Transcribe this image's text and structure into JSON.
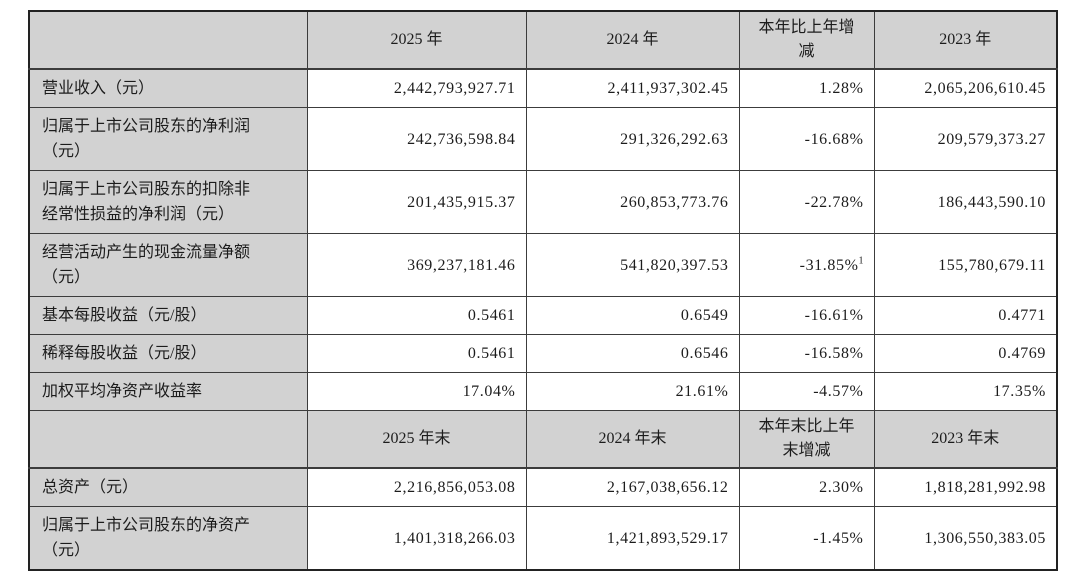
{
  "colors": {
    "header_bg": "#d2d2d2",
    "label_bg": "#d2d2d2",
    "cell_bg": "#ffffff",
    "border": "#3c3c3c",
    "text": "#1c1c1c"
  },
  "table": {
    "column_names": [
      "indicator",
      "year-2025",
      "year-2024",
      "change",
      "year-2023"
    ],
    "sections": [
      {
        "corner": "",
        "columns": [
          "2025 年",
          "2024 年",
          "本年比上年增\n减",
          "2023 年"
        ],
        "rows": [
          {
            "label": "营业收入（元）",
            "values": [
              "2,442,793,927.71",
              "2,411,937,302.45",
              "1.28%",
              "2,065,206,610.45"
            ]
          },
          {
            "label": "归属于上市公司股东的净利润\n（元）",
            "values": [
              "242,736,598.84",
              "291,326,292.63",
              "-16.68%",
              "209,579,373.27"
            ]
          },
          {
            "label": "归属于上市公司股东的扣除非\n经常性损益的净利润（元）",
            "values": [
              "201,435,915.37",
              "260,853,773.76",
              "-22.78%",
              "186,443,590.10"
            ]
          },
          {
            "label": "经营活动产生的现金流量净额\n（元）",
            "values": [
              "369,237,181.46",
              "541,820,397.53",
              "-31.85%",
              "155,780,679.11"
            ],
            "superscripts": {
              "2": "1"
            }
          },
          {
            "label": "基本每股收益（元/股）",
            "values": [
              "0.5461",
              "0.6549",
              "-16.61%",
              "0.4771"
            ]
          },
          {
            "label": "稀释每股收益（元/股）",
            "values": [
              "0.5461",
              "0.6546",
              "-16.58%",
              "0.4769"
            ]
          },
          {
            "label": "加权平均净资产收益率",
            "values": [
              "17.04%",
              "21.61%",
              "-4.57%",
              "17.35%"
            ]
          }
        ]
      },
      {
        "corner": "",
        "columns": [
          "2025 年末",
          "2024 年末",
          "本年末比上年\n末增减",
          "2023 年末"
        ],
        "rows": [
          {
            "label": "总资产（元）",
            "values": [
              "2,216,856,053.08",
              "2,167,038,656.12",
              "2.30%",
              "1,818,281,992.98"
            ]
          },
          {
            "label": "归属于上市公司股东的净资产\n（元）",
            "values": [
              "1,401,318,266.03",
              "1,421,893,529.17",
              "-1.45%",
              "1,306,550,383.05"
            ]
          }
        ]
      }
    ]
  }
}
